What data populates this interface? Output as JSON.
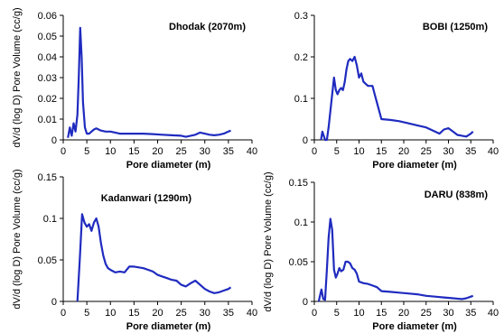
{
  "figure": {
    "charts": [
      {
        "type": "line",
        "title": "Dhodak (2070m)",
        "xlabel": "Pore diameter (m)",
        "ylabel": "dV/d (log D) Pore Volume (cc/g)",
        "xlim": [
          0,
          40
        ],
        "ylim": [
          0,
          0.06
        ],
        "xticks": [
          "0",
          "5",
          "10",
          "15",
          "20",
          "25",
          "30",
          "35",
          "40"
        ],
        "yticks": [
          "0",
          "0.01",
          "0.02",
          "0.03",
          "0.04",
          "0.05",
          "0.06"
        ],
        "color": "#1f2bbf"
      },
      {
        "type": "line",
        "title": "BOBI (1250m)",
        "xlabel": "Pore diameter (m)",
        "ylabel": "",
        "xlim": [
          0,
          40
        ],
        "ylim": [
          0,
          0.3
        ],
        "xticks": [
          "0",
          "5",
          "10",
          "15",
          "20",
          "25",
          "30",
          "35",
          "40"
        ],
        "yticks": [
          "0",
          "0.1",
          "0.2",
          "0.3"
        ],
        "color": "#1f2bbf"
      },
      {
        "type": "line",
        "title": "Kadanwari (1290m)",
        "xlabel": "Pore diameter (m)",
        "ylabel": "dV/d (log D) Pore Volume (cc/g)",
        "xlim": [
          0,
          40
        ],
        "ylim": [
          0,
          0.15
        ],
        "xticks": [
          "0",
          "5",
          "10",
          "15",
          "20",
          "25",
          "30",
          "35",
          "40"
        ],
        "yticks": [
          "0",
          "0.05",
          "0.1",
          "0.15"
        ],
        "color": "#1f2bbf"
      },
      {
        "type": "line",
        "title": "DARU (838m)",
        "xlabel": "Pore diameter (m)",
        "ylabel": "dV/d (log D) Pore Volume (cc/g)",
        "xlim": [
          0,
          40
        ],
        "ylim": [
          0,
          0.15
        ],
        "xticks": [
          "0",
          "5",
          "10",
          "15",
          "20",
          "25",
          "30",
          "35",
          "40"
        ],
        "yticks": [
          "0",
          "0.05",
          "0.1",
          "0.15"
        ],
        "color": "#1f2bbf"
      }
    ]
  },
  "chart_data": [
    {
      "type": "line",
      "title": "Dhodak (2070m)",
      "xlabel": "Pore diameter (m)",
      "ylabel": "dV/d (log D) Pore Volume (cc/g)",
      "xlim": [
        0,
        40
      ],
      "ylim": [
        0,
        0.06
      ],
      "grid": false,
      "x": [
        1,
        1.4,
        1.8,
        2.2,
        2.6,
        3.0,
        3.3,
        3.6,
        3.9,
        4.2,
        4.6,
        5.0,
        5.5,
        6,
        6.5,
        7,
        7.5,
        8,
        9,
        10,
        11,
        12,
        13,
        15,
        17,
        19,
        21,
        23,
        25,
        26,
        27,
        28,
        29,
        30,
        31,
        32,
        33,
        34,
        35,
        35.5
      ],
      "y": [
        0.001,
        0.006,
        0.002,
        0.008,
        0.004,
        0.012,
        0.03,
        0.054,
        0.04,
        0.018,
        0.006,
        0.003,
        0.003,
        0.004,
        0.005,
        0.0055,
        0.005,
        0.0045,
        0.004,
        0.004,
        0.0035,
        0.003,
        0.003,
        0.003,
        0.003,
        0.0028,
        0.0025,
        0.0022,
        0.002,
        0.0015,
        0.002,
        0.0025,
        0.0035,
        0.003,
        0.0025,
        0.0022,
        0.0025,
        0.003,
        0.004,
        0.0045
      ]
    },
    {
      "type": "line",
      "title": "BOBI (1250m)",
      "xlabel": "Pore diameter (m)",
      "ylabel": "",
      "xlim": [
        0,
        40
      ],
      "ylim": [
        0,
        0.3
      ],
      "grid": false,
      "x": [
        1.5,
        1.8,
        2.1,
        2.4,
        2.8,
        3.2,
        3.6,
        4.0,
        4.4,
        4.8,
        5.2,
        5.6,
        6.0,
        6.4,
        6.8,
        7.2,
        7.6,
        8.0,
        8.5,
        9.0,
        9.5,
        10,
        10.5,
        11,
        11.5,
        12,
        13,
        13.5,
        14,
        15,
        17,
        19,
        21,
        23,
        25,
        26,
        27,
        28,
        29,
        30,
        31,
        32,
        33,
        34,
        35,
        35.5
      ],
      "y": [
        0,
        0.02,
        0.01,
        0,
        0,
        0.03,
        0.07,
        0.11,
        0.15,
        0.12,
        0.11,
        0.12,
        0.125,
        0.12,
        0.14,
        0.17,
        0.19,
        0.195,
        0.19,
        0.2,
        0.18,
        0.15,
        0.16,
        0.14,
        0.135,
        0.13,
        0.13,
        0.11,
        0.09,
        0.05,
        0.048,
        0.045,
        0.04,
        0.035,
        0.03,
        0.025,
        0.02,
        0.015,
        0.025,
        0.028,
        0.02,
        0.012,
        0.01,
        0.008,
        0.015,
        0.02
      ]
    },
    {
      "type": "line",
      "title": "Kadanwari (1290m)",
      "xlabel": "Pore diameter (m)",
      "ylabel": "dV/d (log D) Pore Volume (cc/g)",
      "xlim": [
        0,
        40
      ],
      "ylim": [
        0,
        0.15
      ],
      "grid": false,
      "x": [
        3,
        3.5,
        4,
        4.5,
        5,
        5.5,
        6,
        6.5,
        7,
        7.5,
        8,
        8.5,
        9,
        9.5,
        10,
        11,
        12,
        13,
        14,
        15,
        16,
        17,
        18,
        19,
        20,
        21,
        22,
        23,
        24,
        25,
        26,
        27,
        28,
        29,
        30,
        31,
        32,
        33,
        34,
        35,
        35.5
      ],
      "y": [
        0,
        0.05,
        0.105,
        0.095,
        0.09,
        0.093,
        0.085,
        0.095,
        0.1,
        0.09,
        0.07,
        0.055,
        0.045,
        0.04,
        0.038,
        0.035,
        0.036,
        0.035,
        0.042,
        0.042,
        0.041,
        0.04,
        0.038,
        0.036,
        0.032,
        0.03,
        0.028,
        0.026,
        0.025,
        0.02,
        0.018,
        0.022,
        0.025,
        0.02,
        0.015,
        0.012,
        0.01,
        0.011,
        0.013,
        0.015,
        0.017
      ]
    },
    {
      "type": "line",
      "title": "DARU (838m)",
      "xlabel": "Pore diameter (m)",
      "ylabel": "dV/d (log D) Pore Volume (cc/g)",
      "xlim": [
        0,
        40
      ],
      "ylim": [
        0,
        0.15
      ],
      "grid": false,
      "x": [
        1,
        1.3,
        1.6,
        2.0,
        2.4,
        2.8,
        3.2,
        3.6,
        4.0,
        4.4,
        4.8,
        5.2,
        5.6,
        6,
        6.5,
        7,
        7.5,
        8,
        8.5,
        9,
        9.5,
        10,
        11,
        12,
        13,
        14,
        15,
        17,
        19,
        21,
        23,
        25,
        27,
        29,
        31,
        33,
        34,
        35,
        35.5
      ],
      "y": [
        0,
        0.008,
        0.015,
        0.003,
        0.002,
        0.04,
        0.08,
        0.104,
        0.09,
        0.04,
        0.03,
        0.035,
        0.042,
        0.038,
        0.04,
        0.05,
        0.05,
        0.048,
        0.042,
        0.04,
        0.035,
        0.025,
        0.023,
        0.022,
        0.02,
        0.018,
        0.013,
        0.012,
        0.011,
        0.01,
        0.009,
        0.007,
        0.006,
        0.005,
        0.004,
        0.003,
        0.004,
        0.006,
        0.007
      ]
    }
  ]
}
